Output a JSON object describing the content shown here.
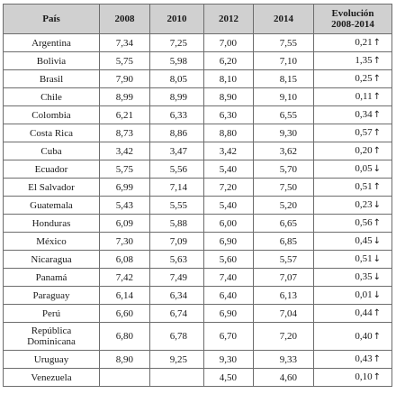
{
  "headers": [
    "País",
    "2008",
    "2010",
    "2012",
    "2014",
    "Evolución\n2008-2014"
  ],
  "rows": [
    {
      "country": "Argentina",
      "v2008": "7,34",
      "v2010": "7,25",
      "v2012": "7,00",
      "v2014": "7,55",
      "evol": "0,21",
      "dir": "up"
    },
    {
      "country": "Bolivia",
      "v2008": "5,75",
      "v2010": "5,98",
      "v2012": "6,20",
      "v2014": "7,10",
      "evol": "1,35",
      "dir": "up"
    },
    {
      "country": "Brasil",
      "v2008": "7,90",
      "v2010": "8,05",
      "v2012": "8,10",
      "v2014": "8,15",
      "evol": "0,25",
      "dir": "up"
    },
    {
      "country": "Chile",
      "v2008": "8,99",
      "v2010": "8,99",
      "v2012": "8,90",
      "v2014": "9,10",
      "evol": "0,11",
      "dir": "up"
    },
    {
      "country": "Colombia",
      "v2008": "6,21",
      "v2010": "6,33",
      "v2012": "6,30",
      "v2014": "6,55",
      "evol": "0,34",
      "dir": "up"
    },
    {
      "country": "Costa Rica",
      "v2008": "8,73",
      "v2010": "8,86",
      "v2012": "8,80",
      "v2014": "9,30",
      "evol": "0,57",
      "dir": "up"
    },
    {
      "country": "Cuba",
      "v2008": "3,42",
      "v2010": "3,47",
      "v2012": "3,42",
      "v2014": "3,62",
      "evol": "0,20",
      "dir": "up"
    },
    {
      "country": "Ecuador",
      "v2008": "5,75",
      "v2010": "5,56",
      "v2012": "5,40",
      "v2014": "5,70",
      "evol": "0,05",
      "dir": "down"
    },
    {
      "country": "El Salvador",
      "v2008": "6,99",
      "v2010": "7,14",
      "v2012": "7,20",
      "v2014": "7,50",
      "evol": "0,51",
      "dir": "up"
    },
    {
      "country": "Guatemala",
      "v2008": "5,43",
      "v2010": "5,55",
      "v2012": "5,40",
      "v2014": "5,20",
      "evol": "0,23",
      "dir": "down"
    },
    {
      "country": "Honduras",
      "v2008": "6,09",
      "v2010": "5,88",
      "v2012": "6,00",
      "v2014": "6,65",
      "evol": "0,56",
      "dir": "up"
    },
    {
      "country": "México",
      "v2008": "7,30",
      "v2010": "7,09",
      "v2012": "6,90",
      "v2014": "6,85",
      "evol": "0,45",
      "dir": "down"
    },
    {
      "country": "Nicaragua",
      "v2008": "6,08",
      "v2010": "5,63",
      "v2012": "5,60",
      "v2014": "5,57",
      "evol": "0,51",
      "dir": "down"
    },
    {
      "country": "Panamá",
      "v2008": "7,42",
      "v2010": "7,49",
      "v2012": "7,40",
      "v2014": "7,07",
      "evol": "0,35",
      "dir": "down"
    },
    {
      "country": "Paraguay",
      "v2008": "6,14",
      "v2010": "6,34",
      "v2012": "6,40",
      "v2014": "6,13",
      "evol": "0,01",
      "dir": "down"
    },
    {
      "country": "Perú",
      "v2008": "6,60",
      "v2010": "6,74",
      "v2012": "6,90",
      "v2014": "7,04",
      "evol": "0,44",
      "dir": "up"
    },
    {
      "country": "República\nDominicana",
      "v2008": "6,80",
      "v2010": "6,78",
      "v2012": "6,70",
      "v2014": "7,20",
      "evol": "0,40",
      "dir": "up"
    },
    {
      "country": "Uruguay",
      "v2008": "8,90",
      "v2010": "9,25",
      "v2012": "9,30",
      "v2014": "9,33",
      "evol": "0,43",
      "dir": "up"
    },
    {
      "country": "Venezuela",
      "v2008": "",
      "v2010": "",
      "v2012": "4,50",
      "v2014": "4,60",
      "evol": "0,10",
      "dir": "up"
    }
  ],
  "arrows": {
    "up": "↑",
    "down": "↓"
  }
}
